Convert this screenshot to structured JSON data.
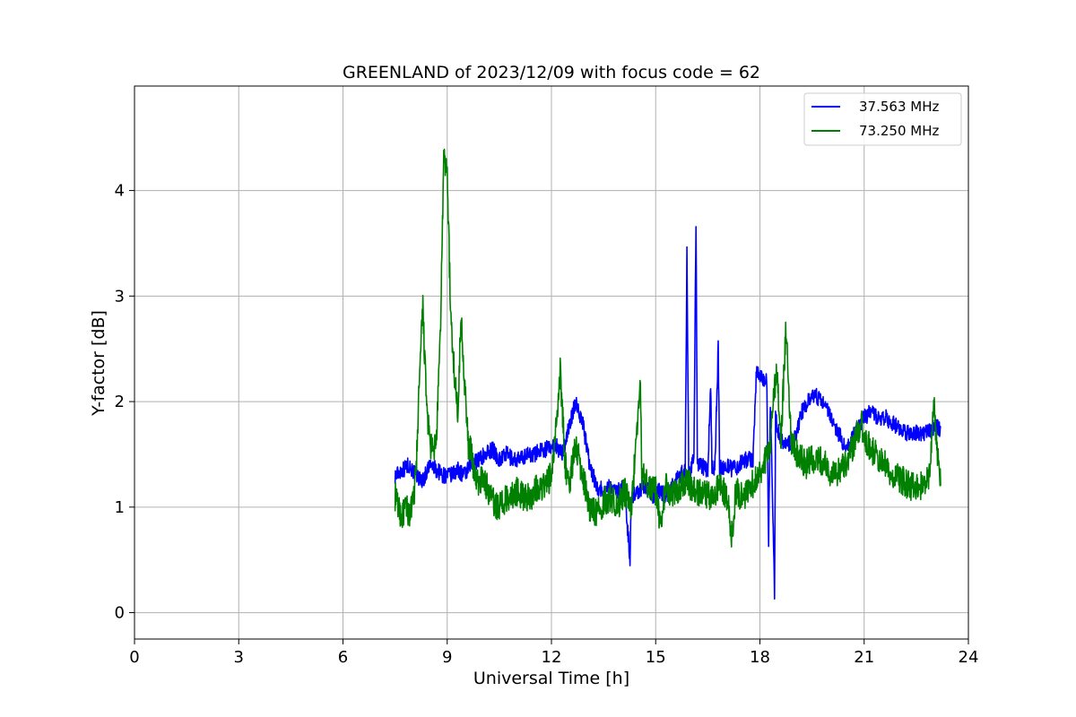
{
  "chart_data": {
    "type": "line",
    "title": "GREENLAND of 2023/12/09 with focus code = 62",
    "xlabel": "Universal Time [h]",
    "ylabel": "Y-factor [dB]",
    "xlim": [
      0,
      24
    ],
    "ylim": [
      -0.25,
      4.99
    ],
    "xticks": [
      0,
      3,
      6,
      9,
      12,
      15,
      18,
      21,
      24
    ],
    "yticks": [
      0,
      1,
      2,
      3,
      4
    ],
    "grid": true,
    "legend_position": "top-right",
    "series": [
      {
        "name": "37.563 MHz",
        "color": "#0000ff",
        "x": [
          7.5,
          7.7,
          7.9,
          8.1,
          8.3,
          8.5,
          8.7,
          8.9,
          9.1,
          9.3,
          9.5,
          9.7,
          9.9,
          10.1,
          10.3,
          10.5,
          10.7,
          10.9,
          11.1,
          11.3,
          11.5,
          11.7,
          11.9,
          12.1,
          12.3,
          12.5,
          12.7,
          12.9,
          13.1,
          13.3,
          13.5,
          13.7,
          13.9,
          14.1,
          14.26,
          14.3,
          14.5,
          14.7,
          14.9,
          15.1,
          15.3,
          15.5,
          15.7,
          15.85,
          15.9,
          15.95,
          16.05,
          16.1,
          16.16,
          16.2,
          16.3,
          16.5,
          16.58,
          16.62,
          16.7,
          16.8,
          16.84,
          16.9,
          16.98,
          17.05,
          17.2,
          17.4,
          17.6,
          17.8,
          17.9,
          18.0,
          18.1,
          18.2,
          18.25,
          18.3,
          18.42,
          18.45,
          18.5,
          18.6,
          18.8,
          19.0,
          19.2,
          19.4,
          19.6,
          19.8,
          20.0,
          20.2,
          20.4,
          20.6,
          20.8,
          21.0,
          21.2,
          21.4,
          21.6,
          21.8,
          22.0,
          22.2,
          22.4,
          22.6,
          22.8,
          23.0,
          23.2
        ],
        "y": [
          1.3,
          1.35,
          1.4,
          1.3,
          1.25,
          1.4,
          1.35,
          1.3,
          1.3,
          1.35,
          1.3,
          1.4,
          1.45,
          1.5,
          1.55,
          1.45,
          1.5,
          1.45,
          1.45,
          1.5,
          1.5,
          1.55,
          1.55,
          1.6,
          1.5,
          1.75,
          2.0,
          1.8,
          1.4,
          1.2,
          1.15,
          1.2,
          1.15,
          1.2,
          0.5,
          1.1,
          1.15,
          1.2,
          1.1,
          1.15,
          1.1,
          1.2,
          1.3,
          1.35,
          3.45,
          1.3,
          1.4,
          1.45,
          3.68,
          1.4,
          1.4,
          1.35,
          2.15,
          1.4,
          1.35,
          2.5,
          1.35,
          1.4,
          1.35,
          1.4,
          1.35,
          1.4,
          1.45,
          1.45,
          2.3,
          2.25,
          2.2,
          2.2,
          0.6,
          2.0,
          0.2,
          1.9,
          1.75,
          1.65,
          1.6,
          1.65,
          1.9,
          2.0,
          2.05,
          2.0,
          1.9,
          1.75,
          1.6,
          1.6,
          1.75,
          1.85,
          1.9,
          1.85,
          1.85,
          1.8,
          1.75,
          1.7,
          1.7,
          1.7,
          1.7,
          1.75,
          1.75
        ],
        "spread": 0.08
      },
      {
        "name": "73.250 MHz",
        "color": "#008000",
        "x": [
          7.5,
          7.6,
          7.7,
          7.8,
          7.9,
          8.0,
          8.1,
          8.2,
          8.3,
          8.4,
          8.5,
          8.6,
          8.7,
          8.8,
          8.9,
          9.0,
          9.1,
          9.2,
          9.3,
          9.4,
          9.5,
          9.6,
          9.7,
          9.8,
          9.9,
          10.0,
          10.2,
          10.4,
          10.6,
          10.8,
          11.0,
          11.2,
          11.4,
          11.6,
          11.8,
          12.0,
          12.1,
          12.25,
          12.4,
          12.5,
          12.7,
          12.9,
          13.1,
          13.3,
          13.5,
          13.7,
          13.9,
          14.1,
          14.3,
          14.5,
          14.55,
          14.6,
          14.8,
          15.0,
          15.15,
          15.2,
          15.3,
          15.5,
          15.7,
          15.9,
          16.1,
          16.3,
          16.5,
          16.7,
          16.9,
          17.1,
          17.2,
          17.3,
          17.5,
          17.7,
          17.9,
          18.1,
          18.3,
          18.4,
          18.5,
          18.6,
          18.75,
          18.9,
          19.1,
          19.3,
          19.5,
          19.7,
          19.9,
          20.1,
          20.3,
          20.5,
          20.7,
          20.9,
          21.1,
          21.3,
          21.5,
          21.7,
          21.9,
          22.1,
          22.3,
          22.5,
          22.7,
          22.9,
          23.0,
          23.1,
          23.2
        ],
        "y": [
          1.1,
          1.0,
          0.9,
          1.0,
          0.95,
          1.0,
          1.3,
          2.2,
          2.9,
          2.0,
          1.6,
          1.5,
          1.7,
          2.6,
          4.3,
          4.2,
          2.8,
          2.3,
          1.9,
          2.8,
          2.2,
          1.6,
          1.5,
          1.3,
          1.2,
          1.3,
          1.15,
          1.0,
          1.05,
          1.1,
          1.15,
          1.1,
          1.1,
          1.2,
          1.2,
          1.3,
          1.6,
          2.3,
          1.4,
          1.2,
          1.6,
          1.3,
          1.0,
          0.95,
          1.05,
          1.1,
          1.0,
          1.15,
          1.0,
          1.9,
          2.3,
          1.3,
          1.2,
          1.15,
          0.8,
          1.0,
          1.2,
          1.1,
          1.2,
          1.25,
          1.15,
          1.15,
          1.1,
          1.15,
          1.2,
          1.0,
          0.7,
          1.15,
          1.1,
          1.15,
          1.3,
          1.4,
          1.6,
          2.1,
          2.3,
          1.6,
          2.7,
          1.6,
          1.5,
          1.4,
          1.45,
          1.45,
          1.4,
          1.3,
          1.35,
          1.4,
          1.6,
          1.8,
          1.6,
          1.5,
          1.45,
          1.35,
          1.3,
          1.25,
          1.2,
          1.2,
          1.2,
          1.3,
          2.0,
          1.5,
          1.2
        ],
        "spread": 0.14
      }
    ]
  }
}
